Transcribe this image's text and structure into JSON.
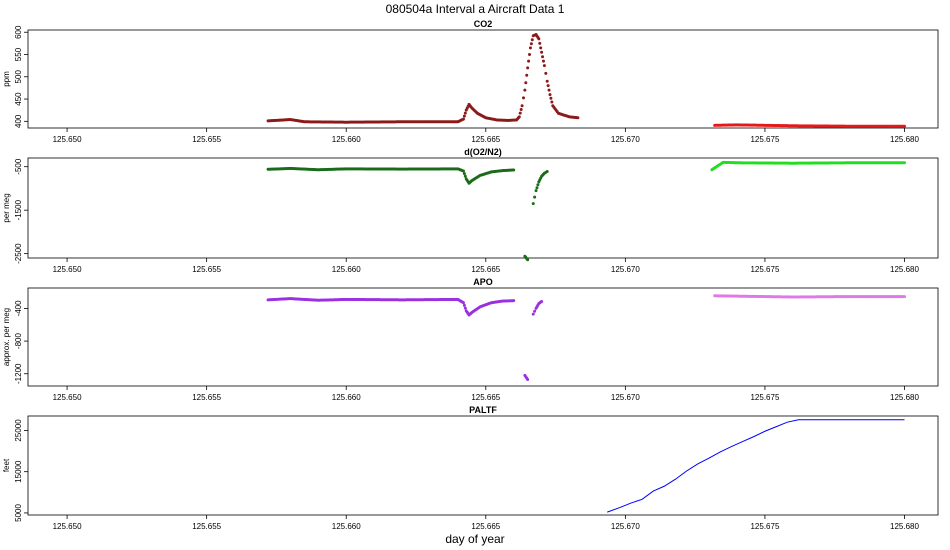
{
  "figure": {
    "title": "080504a   Interval a Aircraft Data 1",
    "xlabel": "day of year"
  },
  "chart_data": [
    {
      "type": "scatter",
      "title": "CO2",
      "ylabel": "ppm",
      "xlim": [
        125.6486,
        125.6812
      ],
      "ylim": [
        385,
        605
      ],
      "xticks": [
        125.65,
        125.655,
        125.66,
        125.665,
        125.67,
        125.675,
        125.68
      ],
      "xtick_labels": [
        "125.650",
        "125.655",
        "125.660",
        "125.665",
        "125.670",
        "125.675",
        "125.680"
      ],
      "yticks": [
        400,
        450,
        500,
        550,
        600
      ],
      "ytick_labels": [
        "400",
        "450",
        "500",
        "550",
        "600"
      ],
      "series": [
        {
          "color": "#8b1a1a",
          "segments": [
            [
              [
                125.6572,
                401
              ],
              [
                125.658,
                404
              ],
              [
                125.6585,
                399
              ],
              [
                125.66,
                398
              ],
              [
                125.662,
                399
              ],
              [
                125.664,
                399
              ],
              [
                125.6642,
                405
              ],
              [
                125.6643,
                425
              ],
              [
                125.6644,
                438
              ],
              [
                125.6645,
                430
              ],
              [
                125.6647,
                418
              ],
              [
                125.665,
                408
              ],
              [
                125.6654,
                403
              ],
              [
                125.6658,
                402
              ],
              [
                125.6661,
                403
              ],
              [
                125.6662,
                410
              ],
              [
                125.6663,
                435
              ],
              [
                125.6664,
                470
              ],
              [
                125.6665,
                520
              ],
              [
                125.6666,
                565
              ],
              [
                125.6667,
                592
              ],
              [
                125.6668,
                595
              ],
              [
                125.6669,
                585
              ],
              [
                125.667,
                555
              ],
              [
                125.6671,
                525
              ],
              [
                125.6672,
                490
              ],
              [
                125.6673,
                460
              ],
              [
                125.6674,
                435
              ],
              [
                125.6676,
                418
              ],
              [
                125.668,
                410
              ],
              [
                125.6683,
                408
              ]
            ]
          ]
        },
        {
          "color": "#e41a1a",
          "segments": [
            [
              [
                125.6732,
                391
              ],
              [
                125.674,
                392
              ],
              [
                125.676,
                390
              ],
              [
                125.678,
                389
              ],
              [
                125.68,
                389
              ]
            ]
          ]
        }
      ]
    },
    {
      "type": "scatter",
      "title": "d(O2/N2)",
      "ylabel": "per meg",
      "xlim": [
        125.6486,
        125.6812
      ],
      "ylim": [
        -2600,
        -300
      ],
      "xticks": [
        125.65,
        125.655,
        125.66,
        125.665,
        125.67,
        125.675,
        125.68
      ],
      "xtick_labels": [
        "125.650",
        "125.655",
        "125.660",
        "125.665",
        "125.670",
        "125.675",
        "125.680"
      ],
      "yticks": [
        -500,
        -1500,
        -2500
      ],
      "ytick_labels": [
        "-500",
        "-1500",
        "-2500"
      ],
      "series": [
        {
          "color": "#1a6b1a",
          "segments": [
            [
              [
                125.6572,
                -560
              ],
              [
                125.658,
                -540
              ],
              [
                125.659,
                -570
              ],
              [
                125.66,
                -550
              ],
              [
                125.662,
                -555
              ],
              [
                125.664,
                -550
              ],
              [
                125.6642,
                -600
              ],
              [
                125.6643,
                -780
              ],
              [
                125.6644,
                -880
              ],
              [
                125.6645,
                -820
              ],
              [
                125.6648,
                -700
              ],
              [
                125.6652,
                -620
              ],
              [
                125.6656,
                -590
              ],
              [
                125.666,
                -575
              ]
            ],
            [
              [
                125.6664,
                -2560
              ],
              [
                125.6665,
                -2640
              ]
            ],
            [
              [
                125.6667,
                -1350
              ],
              [
                125.6668,
                -1050
              ],
              [
                125.6669,
                -850
              ],
              [
                125.667,
                -720
              ],
              [
                125.6671,
                -650
              ],
              [
                125.6672,
                -610
              ]
            ]
          ]
        },
        {
          "color": "#22dd22",
          "segments": [
            [
              [
                125.6731,
                -570
              ],
              [
                125.6735,
                -400
              ],
              [
                125.674,
                -410
              ],
              [
                125.676,
                -420
              ],
              [
                125.678,
                -410
              ],
              [
                125.68,
                -410
              ]
            ]
          ]
        }
      ]
    },
    {
      "type": "scatter",
      "title": "APO",
      "ylabel": "approx. per meg",
      "xlim": [
        125.6486,
        125.6812
      ],
      "ylim": [
        -1350,
        -150
      ],
      "xticks": [
        125.65,
        125.655,
        125.66,
        125.665,
        125.67,
        125.675,
        125.68
      ],
      "xtick_labels": [
        "125.650",
        "125.655",
        "125.660",
        "125.665",
        "125.670",
        "125.675",
        "125.680"
      ],
      "yticks": [
        -400,
        -800,
        -1200
      ],
      "ytick_labels": [
        "-400",
        "-800",
        "-1200"
      ],
      "series": [
        {
          "color": "#9b30e0",
          "segments": [
            [
              [
                125.6572,
                -295
              ],
              [
                125.658,
                -280
              ],
              [
                125.659,
                -300
              ],
              [
                125.66,
                -290
              ],
              [
                125.662,
                -295
              ],
              [
                125.664,
                -290
              ],
              [
                125.6642,
                -330
              ],
              [
                125.6643,
                -430
              ],
              [
                125.6644,
                -480
              ],
              [
                125.6645,
                -450
              ],
              [
                125.6648,
                -380
              ],
              [
                125.6652,
                -330
              ],
              [
                125.6656,
                -310
              ],
              [
                125.666,
                -305
              ]
            ],
            [
              [
                125.6664,
                -1220
              ],
              [
                125.6665,
                -1270
              ]
            ],
            [
              [
                125.6667,
                -470
              ],
              [
                125.6668,
                -400
              ],
              [
                125.6669,
                -340
              ],
              [
                125.667,
                -315
              ]
            ]
          ]
        },
        {
          "color": "#e078e8",
          "segments": [
            [
              [
                125.6732,
                -245
              ],
              [
                125.674,
                -250
              ],
              [
                125.676,
                -260
              ],
              [
                125.678,
                -255
              ],
              [
                125.68,
                -255
              ]
            ]
          ]
        }
      ]
    },
    {
      "type": "line",
      "title": "PALTF",
      "ylabel": "feet",
      "xlim": [
        125.6486,
        125.6812
      ],
      "ylim": [
        4500,
        28500
      ],
      "xticks": [
        125.65,
        125.655,
        125.66,
        125.665,
        125.67,
        125.675,
        125.68
      ],
      "xtick_labels": [
        "125.650",
        "125.655",
        "125.660",
        "125.665",
        "125.670",
        "125.675",
        "125.680"
      ],
      "yticks": [
        5000,
        15000,
        25000
      ],
      "ytick_labels": [
        "5000",
        "15000",
        "25000"
      ],
      "series": [
        {
          "color": "#0000ff",
          "segments": [
            [
              [
                125.66935,
                5200
              ],
              [
                125.6698,
                6300
              ],
              [
                125.6702,
                7400
              ],
              [
                125.6706,
                8300
              ],
              [
                125.671,
                10300
              ],
              [
                125.6714,
                11500
              ],
              [
                125.6718,
                13200
              ],
              [
                125.6722,
                15200
              ],
              [
                125.6726,
                16900
              ],
              [
                125.673,
                18300
              ],
              [
                125.6734,
                19800
              ],
              [
                125.6738,
                21100
              ],
              [
                125.6742,
                22300
              ],
              [
                125.6746,
                23500
              ],
              [
                125.675,
                24800
              ],
              [
                125.6754,
                25900
              ],
              [
                125.6758,
                27000
              ],
              [
                125.6762,
                27600
              ],
              [
                125.678,
                27600
              ],
              [
                125.68,
                27600
              ]
            ]
          ]
        }
      ]
    }
  ]
}
